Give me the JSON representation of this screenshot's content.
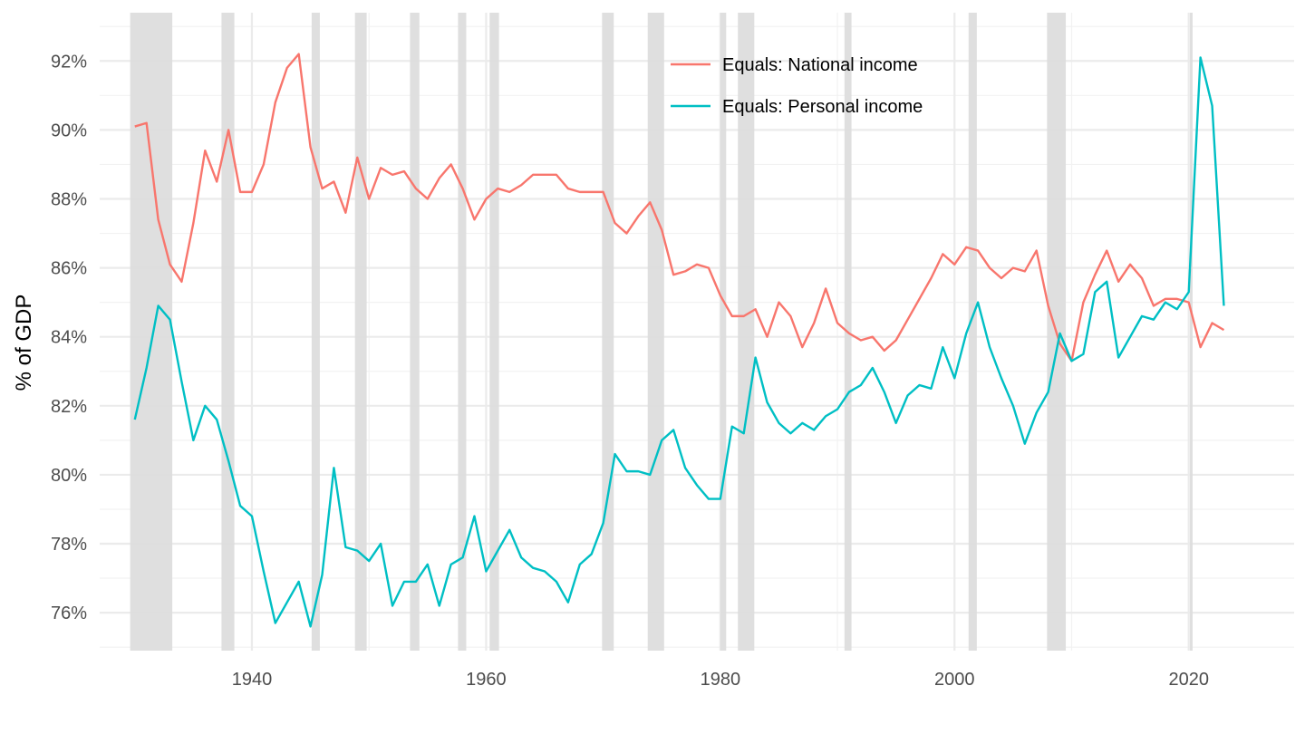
{
  "chart_data": {
    "type": "line",
    "title": "",
    "xlabel": "",
    "ylabel": "% of GDP",
    "xlim": [
      1927,
      2029
    ],
    "ylim": [
      74.9,
      93.4
    ],
    "x_ticks": [
      1940,
      1960,
      1980,
      2000,
      2020
    ],
    "y_ticks": [
      76,
      78,
      80,
      82,
      84,
      86,
      88,
      90,
      92
    ],
    "y_tick_suffix": "%",
    "grid": true,
    "legend_position": "top-right",
    "recession_color": "#dddddd",
    "recessions": [
      [
        1929.6,
        1933.2
      ],
      [
        1937.4,
        1938.5
      ],
      [
        1945.1,
        1945.8
      ],
      [
        1948.8,
        1949.8
      ],
      [
        1953.5,
        1954.3
      ],
      [
        1957.6,
        1958.3
      ],
      [
        1960.3,
        1961.1
      ],
      [
        1969.9,
        1970.9
      ],
      [
        1973.8,
        1975.2
      ],
      [
        1980.0,
        1980.5
      ],
      [
        1981.5,
        1982.9
      ],
      [
        1990.6,
        1991.2
      ],
      [
        2001.2,
        2001.9
      ],
      [
        2007.9,
        2009.5
      ],
      [
        2020.1,
        2020.3
      ]
    ],
    "x": [
      1930,
      1931,
      1932,
      1933,
      1934,
      1935,
      1936,
      1937,
      1938,
      1939,
      1940,
      1941,
      1942,
      1943,
      1944,
      1945,
      1946,
      1947,
      1948,
      1949,
      1950,
      1951,
      1952,
      1953,
      1954,
      1955,
      1956,
      1957,
      1958,
      1959,
      1960,
      1961,
      1962,
      1963,
      1964,
      1965,
      1966,
      1967,
      1968,
      1969,
      1970,
      1971,
      1972,
      1973,
      1974,
      1975,
      1976,
      1977,
      1978,
      1979,
      1980,
      1981,
      1982,
      1983,
      1984,
      1985,
      1986,
      1987,
      1988,
      1989,
      1990,
      1991,
      1992,
      1993,
      1994,
      1995,
      1996,
      1997,
      1998,
      1999,
      2000,
      2001,
      2002,
      2003,
      2004,
      2005,
      2006,
      2007,
      2008,
      2009,
      2010,
      2011,
      2012,
      2013,
      2014,
      2015,
      2016,
      2017,
      2018,
      2019,
      2020,
      2021,
      2022,
      2023
    ],
    "series": [
      {
        "name": "Equals: National income",
        "color": "#f8766d",
        "values": [
          90.1,
          90.2,
          87.4,
          86.1,
          85.6,
          87.3,
          89.4,
          88.5,
          90.0,
          88.2,
          88.2,
          89.0,
          90.8,
          91.8,
          92.2,
          89.5,
          88.3,
          88.5,
          87.6,
          89.2,
          88.0,
          88.9,
          88.7,
          88.8,
          88.3,
          88.0,
          88.6,
          89.0,
          88.3,
          87.4,
          88.0,
          88.3,
          88.2,
          88.4,
          88.7,
          88.7,
          88.7,
          88.3,
          88.2,
          88.2,
          88.2,
          87.3,
          87.0,
          87.5,
          87.9,
          87.1,
          85.8,
          85.9,
          86.1,
          86.0,
          85.2,
          84.6,
          84.6,
          84.8,
          84.0,
          85.0,
          84.6,
          83.7,
          84.4,
          85.4,
          84.4,
          84.1,
          83.9,
          84.0,
          83.6,
          83.9,
          84.5,
          85.1,
          85.7,
          86.4,
          86.1,
          86.6,
          86.5,
          86.0,
          85.7,
          86.0,
          85.9,
          86.5,
          84.9,
          83.8,
          83.3,
          85.0,
          85.8,
          86.5,
          85.6,
          86.1,
          85.7,
          84.9,
          85.1,
          85.1,
          85.0,
          83.7,
          84.4,
          84.2
        ]
      },
      {
        "name": "Equals: Personal income",
        "color": "#00bfc4",
        "values": [
          81.6,
          83.1,
          84.9,
          84.5,
          82.7,
          81.0,
          82.0,
          81.6,
          80.4,
          79.1,
          78.8,
          77.2,
          75.7,
          76.3,
          76.9,
          75.6,
          77.1,
          80.2,
          77.9,
          77.8,
          77.5,
          78.0,
          76.2,
          76.9,
          76.9,
          77.4,
          76.2,
          77.4,
          77.6,
          78.8,
          77.2,
          77.8,
          78.4,
          77.6,
          77.3,
          77.2,
          76.9,
          76.3,
          77.4,
          77.7,
          78.6,
          80.6,
          80.1,
          80.1,
          80.0,
          81.0,
          81.3,
          80.2,
          79.7,
          79.3,
          79.3,
          81.4,
          81.2,
          83.4,
          82.1,
          81.5,
          81.2,
          81.5,
          81.3,
          81.7,
          81.9,
          82.4,
          82.6,
          83.1,
          82.4,
          81.5,
          82.3,
          82.6,
          82.5,
          83.7,
          82.8,
          84.1,
          85.0,
          83.7,
          82.8,
          82.0,
          80.9,
          81.8,
          82.4,
          84.1,
          83.3,
          83.5,
          85.3,
          85.6,
          83.4,
          84.0,
          84.6,
          84.5,
          85.0,
          84.8,
          85.3,
          92.1,
          90.7,
          84.9
        ]
      }
    ]
  }
}
